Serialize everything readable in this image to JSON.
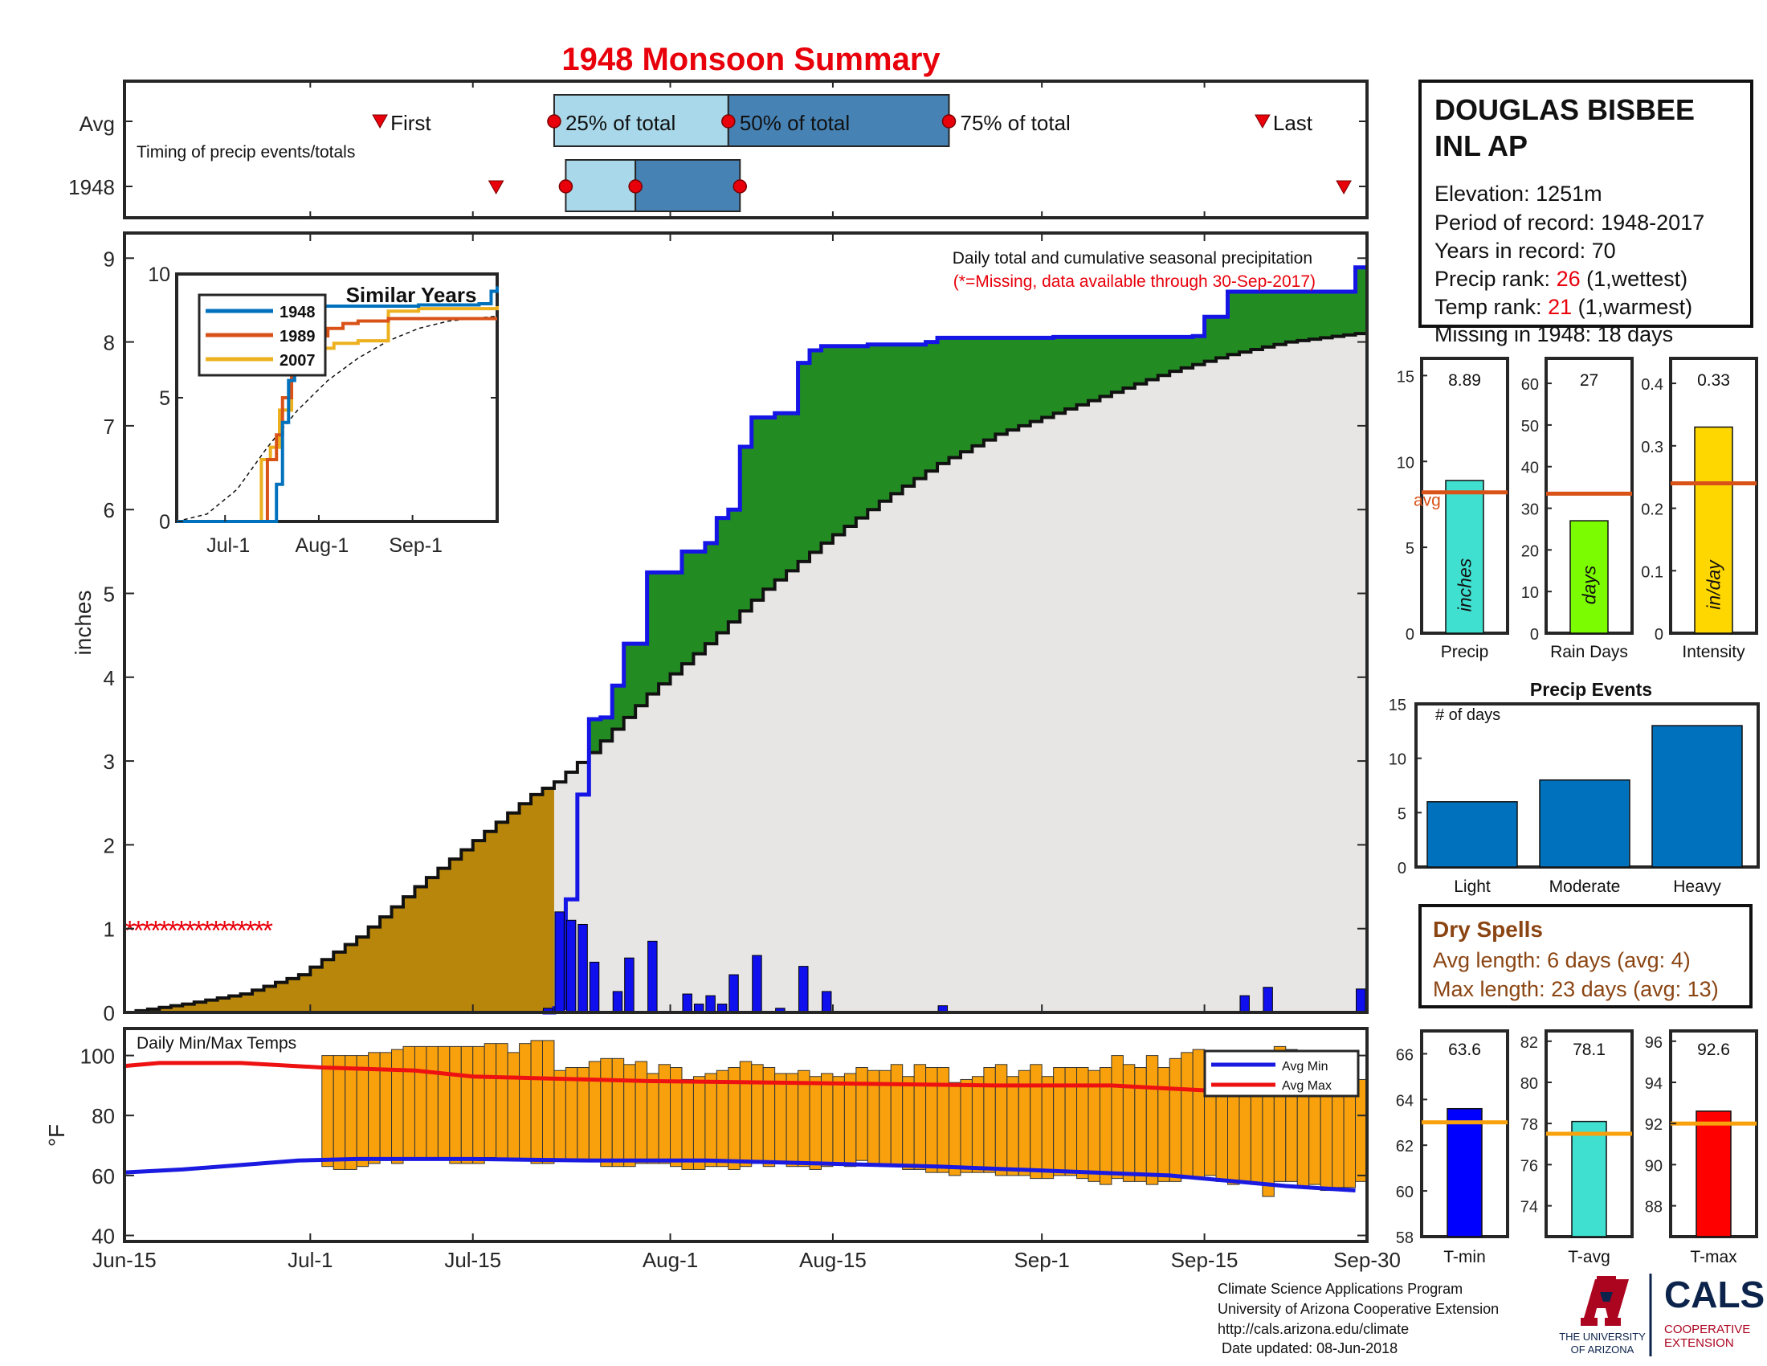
{
  "title": "1948 Monsoon Summary",
  "colors": {
    "title": "#e8000b",
    "frame": "#262626",
    "cumulative_line": "#1515e6",
    "above_avg_fill": "#228b22",
    "prior_fill": "#b8860b",
    "avg_fill": "#e8e6e5",
    "daily_bar": "#1010ee",
    "temp_bar": "#f9a10c",
    "avg_max_line": "#ee1111",
    "avg_min_line": "#1a1ae0",
    "box_light": "#a8d8ea",
    "box_dark": "#4682b4",
    "marker": "#e8000b",
    "dry": "#8b4513",
    "similar_1948": "#0072bd",
    "similar_1989": "#d95319",
    "similar_2007": "#edb120",
    "precip_bar": "#40e0d0",
    "raindays_bar": "#7cfc00",
    "intensity_bar": "#ffd700",
    "avg_line": "#d95319",
    "events_bar": "#0072bd",
    "tmin_bar": "#0000ff",
    "tavg_bar": "#40e0d0",
    "tmax_bar": "#ff0000",
    "temp_avg_line": "#f9a10c",
    "logo_red": "#ab0520",
    "logo_navy": "#0c234b"
  },
  "timing": {
    "row_labels": [
      "Avg",
      "1948"
    ],
    "caption": "Timing of precip events/totals",
    "first_label": "First",
    "last_label": "Last",
    "p25_label": "25% of total",
    "p50_label": "50% of total",
    "p75_label": "75% of total",
    "avg_first_day": 22,
    "avg_p25_day": 37,
    "avg_p50_day": 52,
    "avg_p75_day": 71,
    "avg_last_day": 98,
    "yr_first_day": 32,
    "yr_p25_day": 38,
    "yr_p50_day": 44,
    "yr_p75_day": 53,
    "yr_last_day": 105
  },
  "station": {
    "name_line1": "DOUGLAS BISBEE",
    "name_line2": "INL AP",
    "elevation": "Elevation: 1251m",
    "period": "Period of record: 1948-2017",
    "years": "Years in record: 70",
    "precip_rank_label": "Precip rank: ",
    "precip_rank_value": "26",
    "precip_rank_note": " (1,wettest)",
    "temp_rank_label": "Temp rank: ",
    "temp_rank_value": "21",
    "temp_rank_note": " (1,warmest)",
    "missing": "Missing in 1948: 18 days"
  },
  "main_chart": {
    "ylabel": "inches",
    "yticks": [
      "0",
      "1",
      "2",
      "3",
      "4",
      "5",
      "6",
      "7",
      "8",
      "9"
    ],
    "ylim": [
      0,
      9.3
    ],
    "note_line1": "Daily total and cumulative seasonal precipitation",
    "note_line2": "(*=Missing, data available through 30-Sep-2017)",
    "missing_marks": "*****************",
    "missing_days": [
      0,
      17
    ]
  },
  "inset": {
    "title": "Similar Years",
    "yticks": [
      "0",
      "5",
      "10"
    ],
    "xticks": [
      "Jul-1",
      "Aug-1",
      "Sep-1"
    ],
    "legend": [
      "1948",
      "1989",
      "2007"
    ]
  },
  "temps_chart": {
    "title": "Daily Min/Max Temps",
    "ylabel": "°F",
    "yticks": [
      "40",
      "60",
      "80",
      "100"
    ],
    "ylim": [
      38,
      109
    ],
    "legend_min": "Avg Min",
    "legend_max": "Avg Max",
    "xticks": [
      "Jun-15",
      "Jul-1",
      "Jul-15",
      "Aug-1",
      "Aug-15",
      "Sep-1",
      "Sep-15",
      "Sep-30"
    ]
  },
  "small_bars": {
    "precip": {
      "value_label": "8.89",
      "bar_label": "inches",
      "avg_label": "avg",
      "xlabel": "Precip",
      "yticks": [
        "0",
        "5",
        "10",
        "15"
      ]
    },
    "raindays": {
      "value_label": "27",
      "bar_label": "days",
      "xlabel": "Rain Days",
      "yticks": [
        "0",
        "10",
        "20",
        "30",
        "40",
        "50",
        "60"
      ]
    },
    "intensity": {
      "value_label": "0.33",
      "bar_label": "in/day",
      "xlabel": "Intensity",
      "yticks": [
        "0",
        "0.1",
        "0.2",
        "0.3",
        "0.4"
      ]
    }
  },
  "events": {
    "title": "Precip Events",
    "ylabel": "# of days",
    "yticks": [
      "0",
      "5",
      "10",
      "15"
    ]
  },
  "dry_spells": {
    "title": "Dry Spells",
    "avg_length": "Avg length: 6 days (avg: 4)",
    "max_length": "Max length: 23 days (avg: 13)"
  },
  "temp_bars": {
    "tmin": {
      "value_label": "63.6",
      "xlabel": "T-min",
      "yticks": [
        "58",
        "60",
        "62",
        "64",
        "66"
      ]
    },
    "tavg": {
      "value_label": "78.1",
      "xlabel": "T-avg",
      "yticks": [
        "74",
        "76",
        "78",
        "80",
        "82"
      ]
    },
    "tmax": {
      "value_label": "92.6",
      "xlabel": "T-max",
      "yticks": [
        "88",
        "90",
        "92",
        "94",
        "96"
      ]
    }
  },
  "footer": {
    "line1": "Climate Science Applications Program",
    "line2": "University of Arizona Cooperative Extension",
    "line3": "http://cals.arizona.edu/climate",
    "line4": " Date updated: 08-Jun-2018",
    "ua_line1": "THE UNIVERSITY",
    "ua_line2": "OF ARIZONA",
    "cals": "CALS",
    "coop1": "COOPERATIVE",
    "coop2": "EXTENSION"
  },
  "chart_data": [
    {
      "type": "area",
      "title": "Daily total and cumulative seasonal precipitation",
      "ylabel": "inches",
      "ylim": [
        0,
        9.3
      ],
      "x_start": "Jun-15",
      "x_end": "Sep-30",
      "cumulative_1948": [
        [
          37,
          0.05
        ],
        [
          38,
          1.35
        ],
        [
          39,
          2.6
        ],
        [
          40,
          3.5
        ],
        [
          41,
          3.52
        ],
        [
          42,
          3.9
        ],
        [
          43,
          4.4
        ],
        [
          45,
          5.25
        ],
        [
          48,
          5.5
        ],
        [
          50,
          5.6
        ],
        [
          51,
          5.9
        ],
        [
          52,
          6.0
        ],
        [
          53,
          6.75
        ],
        [
          54,
          7.1
        ],
        [
          56,
          7.15
        ],
        [
          58,
          7.75
        ],
        [
          59,
          7.9
        ],
        [
          60,
          7.95
        ],
        [
          64,
          7.97
        ],
        [
          69,
          8.0
        ],
        [
          70,
          8.05
        ],
        [
          80,
          8.06
        ],
        [
          92,
          8.07
        ],
        [
          93,
          8.3
        ],
        [
          95,
          8.6
        ],
        [
          106,
          8.89
        ]
      ],
      "average_cumulative": [
        [
          0,
          0.0
        ],
        [
          5,
          0.1
        ],
        [
          10,
          0.22
        ],
        [
          15,
          0.45
        ],
        [
          20,
          0.9
        ],
        [
          25,
          1.5
        ],
        [
          30,
          2.05
        ],
        [
          35,
          2.6
        ],
        [
          37,
          2.75
        ],
        [
          40,
          3.1
        ],
        [
          45,
          3.8
        ],
        [
          50,
          4.4
        ],
        [
          55,
          5.05
        ],
        [
          60,
          5.6
        ],
        [
          65,
          6.1
        ],
        [
          70,
          6.55
        ],
        [
          75,
          6.9
        ],
        [
          80,
          7.15
        ],
        [
          85,
          7.4
        ],
        [
          90,
          7.65
        ],
        [
          95,
          7.85
        ],
        [
          100,
          8.0
        ],
        [
          106,
          8.1
        ]
      ],
      "daily_precip": [
        [
          36,
          0.05
        ],
        [
          37,
          1.2
        ],
        [
          38,
          1.1
        ],
        [
          39,
          1.05
        ],
        [
          40,
          0.6
        ],
        [
          42,
          0.25
        ],
        [
          43,
          0.65
        ],
        [
          45,
          0.85
        ],
        [
          48,
          0.22
        ],
        [
          49,
          0.1
        ],
        [
          50,
          0.2
        ],
        [
          51,
          0.1
        ],
        [
          52,
          0.45
        ],
        [
          54,
          0.68
        ],
        [
          56,
          0.05
        ],
        [
          58,
          0.55
        ],
        [
          60,
          0.25
        ],
        [
          70,
          0.08
        ],
        [
          96,
          0.2
        ],
        [
          98,
          0.3
        ],
        [
          106,
          0.28
        ]
      ]
    },
    {
      "type": "line",
      "title": "Similar Years",
      "series": [
        {
          "name": "1948",
          "values": [
            [
              0,
              0.0
            ],
            [
              30,
              0.0
            ],
            [
              33,
              1.5
            ],
            [
              35,
              4.0
            ],
            [
              37,
              5.7
            ],
            [
              39,
              6.5
            ],
            [
              41,
              7.2
            ],
            [
              43,
              8.4
            ],
            [
              45,
              8.6
            ],
            [
              48,
              8.7
            ],
            [
              60,
              8.7
            ],
            [
              80,
              8.75
            ],
            [
              100,
              8.8
            ],
            [
              104,
              9.3
            ],
            [
              106,
              9.5
            ]
          ]
        },
        {
          "name": "1989",
          "values": [
            [
              0,
              0.0
            ],
            [
              26,
              0.0
            ],
            [
              30,
              2.5
            ],
            [
              33,
              3.5
            ],
            [
              35,
              5.0
            ],
            [
              38,
              6.0
            ],
            [
              42,
              7.2
            ],
            [
              45,
              7.5
            ],
            [
              50,
              7.8
            ],
            [
              55,
              8.0
            ],
            [
              60,
              8.1
            ],
            [
              70,
              8.2
            ],
            [
              106,
              8.2
            ]
          ]
        },
        {
          "name": "2007",
          "values": [
            [
              0,
              0.0
            ],
            [
              25,
              0.0
            ],
            [
              28,
              2.5
            ],
            [
              31,
              3.0
            ],
            [
              34,
              4.5
            ],
            [
              38,
              6.0
            ],
            [
              42,
              6.8
            ],
            [
              46,
              7.0
            ],
            [
              52,
              7.2
            ],
            [
              60,
              7.3
            ],
            [
              70,
              8.5
            ],
            [
              80,
              8.6
            ],
            [
              106,
              8.7
            ]
          ]
        }
      ],
      "average": [
        [
          0,
          0.0
        ],
        [
          10,
          0.3
        ],
        [
          20,
          1.3
        ],
        [
          30,
          3.0
        ],
        [
          40,
          4.5
        ],
        [
          50,
          5.7
        ],
        [
          60,
          6.6
        ],
        [
          70,
          7.3
        ],
        [
          80,
          7.8
        ],
        [
          90,
          8.1
        ],
        [
          106,
          8.3
        ]
      ]
    },
    {
      "type": "bar",
      "title": "Daily Min/Max Temps",
      "ylabel": "°F",
      "ylim": [
        38,
        109
      ],
      "start_day": 17,
      "daily_tmax": [
        100,
        100,
        100,
        100,
        101,
        101,
        102,
        103,
        103,
        103,
        103,
        103,
        103,
        103,
        104,
        104,
        101,
        104,
        105,
        105,
        95,
        96,
        96,
        98,
        99,
        99,
        97,
        98,
        94,
        97,
        96,
        92,
        93,
        94,
        95,
        96,
        98,
        97,
        96,
        94,
        94,
        95,
        93,
        94,
        93,
        94,
        96,
        95,
        95,
        97,
        93,
        97,
        96,
        96,
        91,
        92,
        93,
        96,
        97,
        93,
        95,
        97,
        93,
        96,
        96,
        96,
        95,
        96,
        100,
        97,
        96,
        100,
        96,
        99,
        101,
        102,
        100,
        99,
        96,
        96,
        97,
        101,
        103,
        102,
        99,
        98,
        99,
        97,
        94,
        92,
        92,
        89,
        96,
        90,
        91,
        91,
        88,
        89,
        89,
        90
      ],
      "daily_tmin": [
        63,
        62,
        62,
        63,
        64,
        65,
        64,
        66,
        66,
        66,
        66,
        64,
        64,
        64,
        66,
        65,
        65,
        65,
        64,
        64,
        65,
        65,
        65,
        65,
        63,
        63,
        63,
        64,
        64,
        64,
        63,
        62,
        62,
        63,
        63,
        62,
        63,
        64,
        63,
        64,
        63,
        63,
        62,
        63,
        64,
        63,
        65,
        64,
        63,
        63,
        62,
        62,
        61,
        61,
        60,
        61,
        61,
        61,
        60,
        60,
        60,
        59,
        59,
        60,
        60,
        59,
        58,
        57,
        59,
        58,
        58,
        57,
        58,
        58,
        59,
        59,
        60,
        58,
        57,
        58,
        57,
        53,
        58,
        58,
        56,
        57,
        55,
        56,
        56,
        58,
        54,
        57,
        55,
        55,
        53,
        56,
        54,
        54,
        55,
        48
      ],
      "avg_max": [
        [
          0,
          96.5
        ],
        [
          3,
          97.5
        ],
        [
          10,
          97.5
        ],
        [
          17,
          96
        ],
        [
          25,
          95
        ],
        [
          30,
          93
        ],
        [
          35,
          92.5
        ],
        [
          45,
          91.5
        ],
        [
          55,
          91
        ],
        [
          65,
          90.5
        ],
        [
          75,
          90
        ],
        [
          85,
          90
        ],
        [
          95,
          88
        ],
        [
          106,
          87
        ]
      ],
      "avg_min": [
        [
          0,
          61
        ],
        [
          5,
          62
        ],
        [
          10,
          63.5
        ],
        [
          15,
          65
        ],
        [
          20,
          65.5
        ],
        [
          30,
          65.5
        ],
        [
          40,
          65
        ],
        [
          50,
          65
        ],
        [
          60,
          64
        ],
        [
          70,
          63
        ],
        [
          80,
          61.5
        ],
        [
          90,
          60
        ],
        [
          100,
          56.5
        ],
        [
          106,
          55
        ]
      ]
    },
    {
      "type": "bar",
      "categories": [
        "Precip",
        "Rain Days",
        "Intensity"
      ],
      "values": [
        8.89,
        27,
        0.33
      ],
      "averages": [
        8.2,
        33.5,
        0.24
      ],
      "ylims": [
        [
          0,
          16
        ],
        [
          0,
          66
        ],
        [
          0,
          0.44
        ]
      ]
    },
    {
      "type": "bar",
      "title": "Precip Events",
      "ylabel": "# of days",
      "categories": [
        "Light",
        "Moderate",
        "Heavy"
      ],
      "values": [
        6,
        8,
        13
      ],
      "ylim": [
        0,
        15
      ]
    },
    {
      "type": "bar",
      "categories": [
        "T-min",
        "T-avg",
        "T-max"
      ],
      "values": [
        63.6,
        78.1,
        92.6
      ],
      "averages": [
        63.0,
        77.5,
        92.0
      ],
      "ylims": [
        [
          58,
          67
        ],
        [
          72.5,
          82.5
        ],
        [
          86.5,
          96.5
        ]
      ]
    }
  ]
}
